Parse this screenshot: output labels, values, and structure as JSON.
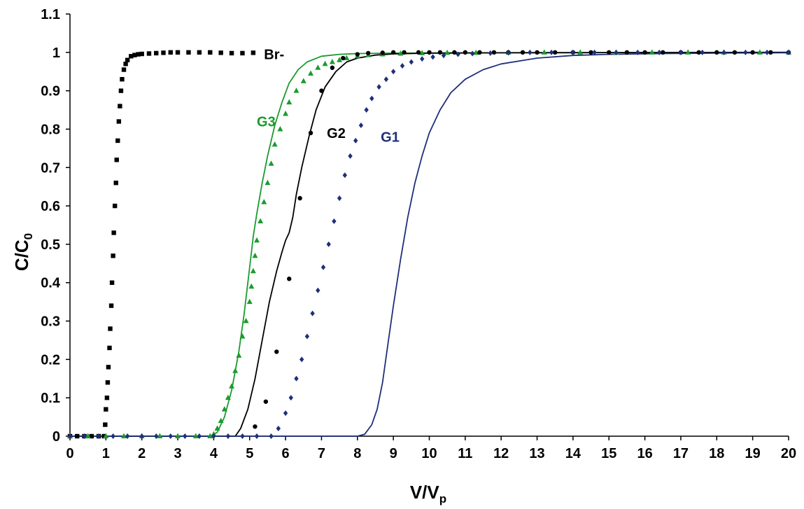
{
  "chart_data": {
    "type": "scatter",
    "title": "",
    "xlabel": {
      "main": "V/V",
      "sub": "p"
    },
    "ylabel": {
      "main": "C/C",
      "sub": "0"
    },
    "xlim": [
      0,
      20
    ],
    "ylim": [
      0,
      1.1
    ],
    "x_ticks": [
      "0",
      "1",
      "2",
      "3",
      "4",
      "5",
      "6",
      "7",
      "8",
      "9",
      "10",
      "11",
      "12",
      "13",
      "14",
      "15",
      "16",
      "17",
      "18",
      "19",
      "20"
    ],
    "y_ticks": [
      "0",
      "0.1",
      "0.2",
      "0.3",
      "0.4",
      "0.5",
      "0.6",
      "0.7",
      "0.8",
      "0.9",
      "1",
      "1.1"
    ],
    "grid": false,
    "legend": "none (series labelled directly on the plot)",
    "series": [
      {
        "name": "Br-",
        "color": "#000000",
        "marker": "square",
        "points": [
          [
            0.0,
            0
          ],
          [
            0.2,
            0
          ],
          [
            0.4,
            0
          ],
          [
            0.6,
            0
          ],
          [
            0.8,
            0
          ],
          [
            0.95,
            0.0
          ],
          [
            0.98,
            0.03
          ],
          [
            1.0,
            0.07
          ],
          [
            1.03,
            0.1
          ],
          [
            1.05,
            0.14
          ],
          [
            1.07,
            0.18
          ],
          [
            1.1,
            0.23
          ],
          [
            1.12,
            0.28
          ],
          [
            1.15,
            0.34
          ],
          [
            1.17,
            0.4
          ],
          [
            1.2,
            0.47
          ],
          [
            1.22,
            0.53
          ],
          [
            1.25,
            0.6
          ],
          [
            1.28,
            0.66
          ],
          [
            1.3,
            0.72
          ],
          [
            1.33,
            0.77
          ],
          [
            1.36,
            0.82
          ],
          [
            1.39,
            0.86
          ],
          [
            1.42,
            0.9
          ],
          [
            1.45,
            0.93
          ],
          [
            1.5,
            0.955
          ],
          [
            1.55,
            0.97
          ],
          [
            1.6,
            0.98
          ],
          [
            1.7,
            0.99
          ],
          [
            1.8,
            0.993
          ],
          [
            1.9,
            0.995
          ],
          [
            2.0,
            0.996
          ],
          [
            2.2,
            0.997
          ],
          [
            2.4,
            0.998
          ],
          [
            2.6,
            0.999
          ],
          [
            2.8,
            1.0
          ],
          [
            3.0,
            1.0
          ],
          [
            3.3,
            1.0
          ],
          [
            3.6,
            1.0
          ],
          [
            3.9,
            1.0
          ],
          [
            4.2,
            0.999
          ],
          [
            4.5,
            0.998
          ],
          [
            4.8,
            0.998
          ],
          [
            5.1,
            0.999
          ]
        ]
      },
      {
        "name": "G3",
        "color": "#1a9b2e",
        "marker": "triangle",
        "points": [
          [
            0,
            0
          ],
          [
            0.5,
            0
          ],
          [
            1,
            0
          ],
          [
            1.5,
            0
          ],
          [
            2,
            0
          ],
          [
            2.5,
            0
          ],
          [
            3,
            0
          ],
          [
            3.5,
            0
          ],
          [
            3.9,
            0.0
          ],
          [
            4.0,
            0.005
          ],
          [
            4.1,
            0.02
          ],
          [
            4.2,
            0.04
          ],
          [
            4.3,
            0.07
          ],
          [
            4.4,
            0.1
          ],
          [
            4.5,
            0.13
          ],
          [
            4.6,
            0.17
          ],
          [
            4.7,
            0.21
          ],
          [
            4.8,
            0.26
          ],
          [
            4.9,
            0.3
          ],
          [
            5.0,
            0.35
          ],
          [
            5.05,
            0.39
          ],
          [
            5.1,
            0.43
          ],
          [
            5.15,
            0.47
          ],
          [
            5.2,
            0.51
          ],
          [
            5.3,
            0.56
          ],
          [
            5.4,
            0.61
          ],
          [
            5.5,
            0.66
          ],
          [
            5.6,
            0.71
          ],
          [
            5.7,
            0.76
          ],
          [
            5.85,
            0.8
          ],
          [
            6.0,
            0.84
          ],
          [
            6.1,
            0.87
          ],
          [
            6.3,
            0.9
          ],
          [
            6.5,
            0.925
          ],
          [
            6.7,
            0.945
          ],
          [
            6.9,
            0.96
          ],
          [
            7.1,
            0.97
          ],
          [
            7.3,
            0.975
          ],
          [
            7.5,
            0.98
          ],
          [
            7.7,
            0.985
          ],
          [
            8.0,
            0.99
          ],
          [
            8.3,
            0.993
          ],
          [
            8.7,
            0.995
          ],
          [
            9.2,
            0.997
          ],
          [
            9.8,
            0.998
          ],
          [
            10.5,
            0.999
          ],
          [
            11.3,
            0.999
          ],
          [
            12.2,
            1.0
          ],
          [
            13.2,
            1.0
          ],
          [
            14.2,
            1.0
          ],
          [
            15.2,
            1.0
          ],
          [
            16.2,
            1.0
          ],
          [
            17.2,
            1.0
          ],
          [
            18.2,
            1.0
          ],
          [
            19.2,
            1.0
          ],
          [
            20.0,
            1.0
          ]
        ]
      },
      {
        "name": "G2",
        "color": "#000000",
        "marker": "circle",
        "points": [
          [
            5.15,
            0.025
          ],
          [
            5.45,
            0.09
          ],
          [
            5.75,
            0.22
          ],
          [
            6.1,
            0.41
          ],
          [
            6.4,
            0.62
          ],
          [
            6.7,
            0.79
          ],
          [
            7.0,
            0.9
          ],
          [
            7.3,
            0.96
          ],
          [
            7.6,
            0.985
          ],
          [
            8.0,
            0.995
          ],
          [
            8.3,
            0.998
          ],
          [
            8.7,
            0.999
          ],
          [
            9.0,
            1.0
          ],
          [
            9.3,
            1.0
          ],
          [
            9.7,
            1.0
          ],
          [
            10.0,
            1.0
          ],
          [
            10.3,
            1.0
          ],
          [
            10.7,
            1.0
          ],
          [
            11.0,
            1.0
          ],
          [
            11.4,
            1.0
          ],
          [
            11.8,
            1.0
          ],
          [
            12.2,
            1.0
          ],
          [
            12.6,
            1.0
          ],
          [
            13.0,
            1.0
          ],
          [
            13.5,
            1.0
          ],
          [
            14.0,
            1.0
          ],
          [
            14.5,
            1.0
          ],
          [
            15.0,
            1.0
          ],
          [
            15.5,
            1.0
          ],
          [
            16.0,
            1.0
          ],
          [
            16.5,
            1.0
          ],
          [
            17.0,
            1.0
          ],
          [
            17.5,
            1.0
          ],
          [
            18.0,
            1.0
          ],
          [
            18.5,
            1.0
          ],
          [
            19.0,
            1.0
          ],
          [
            19.5,
            1.0
          ],
          [
            20.0,
            1.0
          ]
        ]
      },
      {
        "name": "G1",
        "color": "#1f2f7a",
        "marker": "diamond",
        "points": [
          [
            0,
            0
          ],
          [
            0.4,
            0
          ],
          [
            0.8,
            0
          ],
          [
            1.2,
            0
          ],
          [
            1.6,
            0
          ],
          [
            2.0,
            0
          ],
          [
            2.4,
            0
          ],
          [
            2.8,
            0
          ],
          [
            3.2,
            0
          ],
          [
            3.6,
            0
          ],
          [
            4.0,
            0
          ],
          [
            4.4,
            0
          ],
          [
            4.8,
            0
          ],
          [
            5.2,
            0
          ],
          [
            5.6,
            0.0
          ],
          [
            5.8,
            0.02
          ],
          [
            6.0,
            0.06
          ],
          [
            6.15,
            0.1
          ],
          [
            6.3,
            0.15
          ],
          [
            6.45,
            0.2
          ],
          [
            6.6,
            0.26
          ],
          [
            6.75,
            0.32
          ],
          [
            6.9,
            0.38
          ],
          [
            7.05,
            0.44
          ],
          [
            7.2,
            0.5
          ],
          [
            7.35,
            0.56
          ],
          [
            7.5,
            0.62
          ],
          [
            7.65,
            0.68
          ],
          [
            7.8,
            0.73
          ],
          [
            7.95,
            0.77
          ],
          [
            8.1,
            0.81
          ],
          [
            8.25,
            0.85
          ],
          [
            8.4,
            0.88
          ],
          [
            8.6,
            0.91
          ],
          [
            8.8,
            0.93
          ],
          [
            9.0,
            0.95
          ],
          [
            9.25,
            0.965
          ],
          [
            9.5,
            0.975
          ],
          [
            9.8,
            0.983
          ],
          [
            10.1,
            0.988
          ],
          [
            10.4,
            0.992
          ],
          [
            10.8,
            0.995
          ],
          [
            11.2,
            0.997
          ],
          [
            11.7,
            0.998
          ],
          [
            12.2,
            0.999
          ],
          [
            12.8,
            1.0
          ],
          [
            13.4,
            1.0
          ],
          [
            14.0,
            1.0
          ],
          [
            14.6,
            1.0
          ],
          [
            15.2,
            1.0
          ],
          [
            15.8,
            1.0
          ],
          [
            16.4,
            1.0
          ],
          [
            17.0,
            1.0
          ],
          [
            17.6,
            1.0
          ],
          [
            18.2,
            1.0
          ],
          [
            18.8,
            1.0
          ],
          [
            19.4,
            1.0
          ],
          [
            20.0,
            1.0
          ]
        ]
      }
    ],
    "fits": [
      {
        "series": "G3",
        "color": "#1a9b2e",
        "type": "line",
        "points": [
          [
            0,
            0
          ],
          [
            3.9,
            0
          ],
          [
            4.1,
            0.01
          ],
          [
            4.3,
            0.05
          ],
          [
            4.5,
            0.12
          ],
          [
            4.7,
            0.22
          ],
          [
            4.85,
            0.32
          ],
          [
            5.0,
            0.44
          ],
          [
            5.1,
            0.52
          ],
          [
            5.2,
            0.58
          ],
          [
            5.35,
            0.66
          ],
          [
            5.5,
            0.73
          ],
          [
            5.7,
            0.81
          ],
          [
            5.9,
            0.87
          ],
          [
            6.1,
            0.92
          ],
          [
            6.35,
            0.955
          ],
          [
            6.6,
            0.975
          ],
          [
            7.0,
            0.99
          ],
          [
            7.5,
            0.995
          ],
          [
            8.0,
            0.997
          ],
          [
            9.0,
            0.998
          ],
          [
            12.0,
            0.999
          ],
          [
            20.0,
            1.0
          ]
        ]
      },
      {
        "series": "G2",
        "color": "#000000",
        "type": "line",
        "points": [
          [
            0,
            0
          ],
          [
            4.6,
            0
          ],
          [
            4.75,
            0.02
          ],
          [
            4.95,
            0.07
          ],
          [
            5.15,
            0.15
          ],
          [
            5.35,
            0.25
          ],
          [
            5.55,
            0.35
          ],
          [
            5.75,
            0.43
          ],
          [
            5.9,
            0.48
          ],
          [
            6.0,
            0.51
          ],
          [
            6.1,
            0.53
          ],
          [
            6.2,
            0.57
          ],
          [
            6.3,
            0.63
          ],
          [
            6.45,
            0.7
          ],
          [
            6.65,
            0.78
          ],
          [
            6.85,
            0.85
          ],
          [
            7.1,
            0.91
          ],
          [
            7.4,
            0.95
          ],
          [
            7.7,
            0.975
          ],
          [
            8.0,
            0.985
          ],
          [
            8.5,
            0.993
          ],
          [
            9.0,
            0.996
          ],
          [
            10.0,
            0.998
          ],
          [
            12.0,
            0.999
          ],
          [
            20.0,
            1.0
          ]
        ]
      },
      {
        "series": "G1",
        "color": "#1f2f7a",
        "type": "line",
        "points": [
          [
            0,
            0
          ],
          [
            8.0,
            0
          ],
          [
            8.2,
            0.005
          ],
          [
            8.4,
            0.03
          ],
          [
            8.55,
            0.07
          ],
          [
            8.7,
            0.14
          ],
          [
            8.85,
            0.24
          ],
          [
            9.0,
            0.34
          ],
          [
            9.2,
            0.46
          ],
          [
            9.4,
            0.57
          ],
          [
            9.6,
            0.66
          ],
          [
            9.8,
            0.73
          ],
          [
            10.0,
            0.79
          ],
          [
            10.3,
            0.85
          ],
          [
            10.6,
            0.895
          ],
          [
            11.0,
            0.93
          ],
          [
            11.5,
            0.955
          ],
          [
            12.0,
            0.97
          ],
          [
            13.0,
            0.985
          ],
          [
            14.0,
            0.992
          ],
          [
            15.0,
            0.995
          ],
          [
            16.5,
            0.997
          ],
          [
            18.0,
            0.998
          ],
          [
            20.0,
            0.999
          ]
        ]
      }
    ],
    "annotations": [
      {
        "text": "Br-",
        "x": 5.4,
        "y": 0.995,
        "color": "#000000"
      },
      {
        "text": "G3",
        "x": 5.2,
        "y": 0.82,
        "color": "#1a9b2e"
      },
      {
        "text": "G2",
        "x": 7.15,
        "y": 0.79,
        "color": "#000000"
      },
      {
        "text": "G1",
        "x": 8.65,
        "y": 0.78,
        "color": "#1f2f7a"
      }
    ]
  }
}
